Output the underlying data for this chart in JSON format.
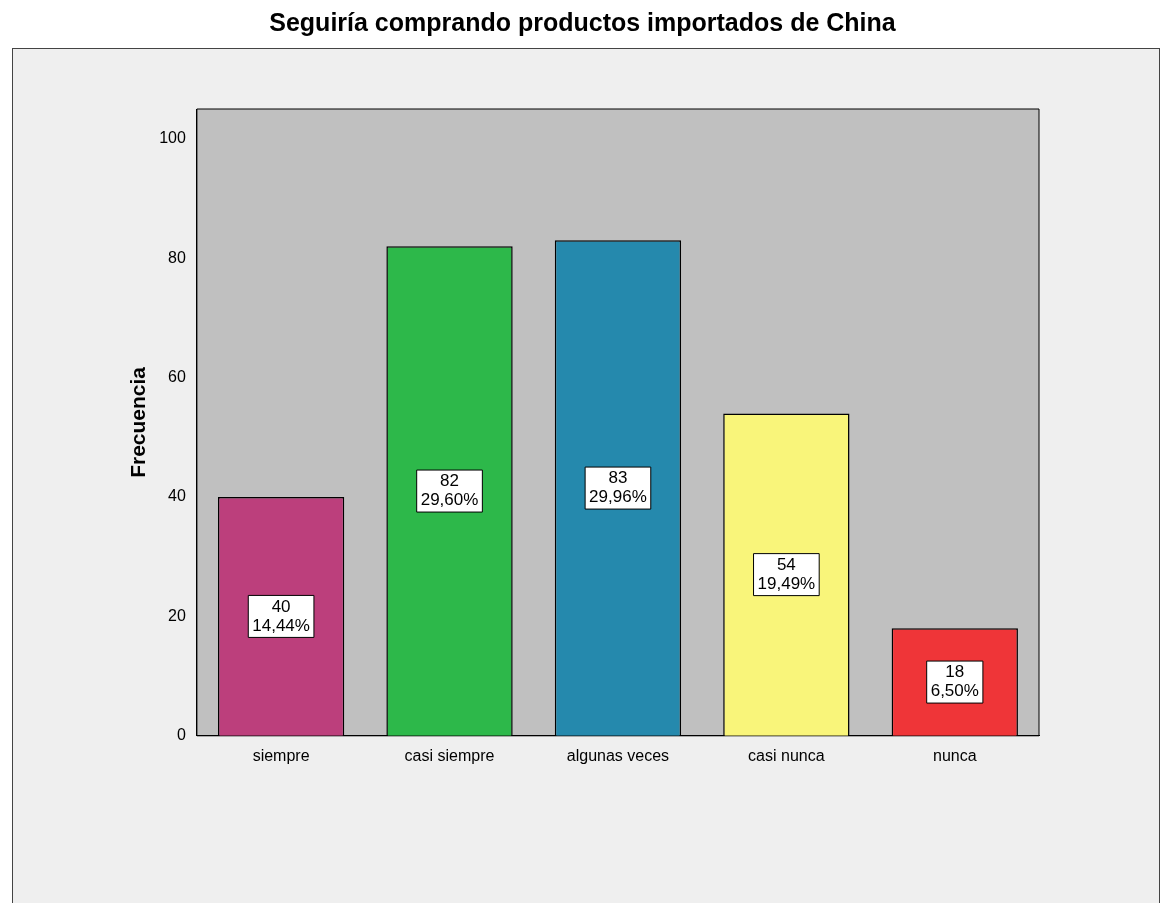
{
  "chart_data": {
    "type": "bar",
    "title": "Seguiría comprando productos importados de China",
    "ylabel": "Frecuencia",
    "categories": [
      "siempre",
      "casi siempre",
      "algunas veces",
      "casi nunca",
      "nunca"
    ],
    "values": [
      40,
      82,
      83,
      54,
      18
    ],
    "colors": [
      "#bc3f7c",
      "#2db84a",
      "#2589ad",
      "#f9f57a",
      "#ef3538"
    ],
    "value_labels": [
      "40\n14,44%",
      "82\n29,60%",
      "83\n29,96%",
      "54\n19,49%",
      "18\n6,50%"
    ],
    "ylim": [
      0,
      105
    ],
    "yticks": [
      0,
      20,
      40,
      60,
      80,
      100
    ],
    "grid": false,
    "legend": false
  }
}
